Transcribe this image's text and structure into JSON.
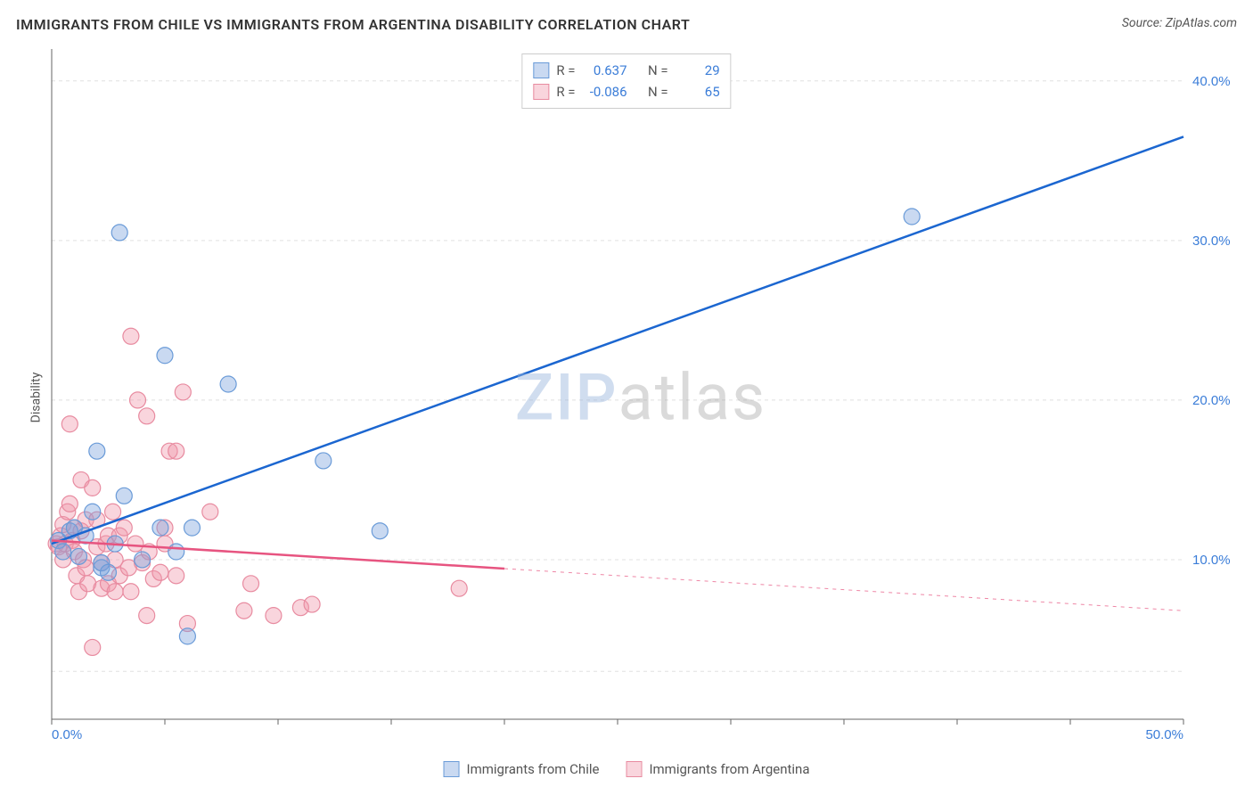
{
  "title": "IMMIGRANTS FROM CHILE VS IMMIGRANTS FROM ARGENTINA DISABILITY CORRELATION CHART",
  "source_prefix": "Source: ",
  "source_name": "ZipAtlas.com",
  "y_axis_label": "Disability",
  "watermark_a": "ZIP",
  "watermark_b": "atlas",
  "chart": {
    "type": "scatter",
    "xlim": [
      0,
      50
    ],
    "ylim": [
      0,
      42
    ],
    "x_ticks": [
      0,
      5,
      10,
      15,
      20,
      25,
      30,
      35,
      40,
      45,
      50
    ],
    "x_tick_labels": {
      "0": "0.0%",
      "50": "50.0%"
    },
    "y_ticks": [
      10,
      20,
      30,
      40
    ],
    "y_tick_labels": {
      "10": "10.0%",
      "20": "20.0%",
      "30": "30.0%",
      "40": "40.0%"
    },
    "y_grid": [
      3,
      10,
      20,
      30,
      40
    ],
    "background_color": "#ffffff",
    "grid_color": "#e0e0e0",
    "grid_dash": "4 4",
    "axis_color": "#666666",
    "tick_label_color": "#3b7dd8",
    "marker_radius": 9,
    "marker_opacity": 0.55,
    "line_width": 2.5
  },
  "series": [
    {
      "name": "Immigrants from Chile",
      "color_fill": "rgba(120,160,220,0.4)",
      "color_stroke": "#6a9bd8",
      "line_color": "#1b66d0",
      "r_label": "R =",
      "r_value": "0.637",
      "n_label": "N =",
      "n_value": "29",
      "points": [
        [
          0.3,
          11.2
        ],
        [
          0.5,
          10.5
        ],
        [
          0.8,
          11.8
        ],
        [
          1.0,
          12.0
        ],
        [
          1.2,
          10.2
        ],
        [
          1.5,
          11.5
        ],
        [
          1.8,
          13.0
        ],
        [
          2.0,
          16.8
        ],
        [
          2.2,
          9.5
        ],
        [
          2.2,
          9.8
        ],
        [
          2.5,
          9.2
        ],
        [
          2.8,
          11.0
        ],
        [
          3.0,
          30.5
        ],
        [
          3.2,
          14.0
        ],
        [
          4.0,
          10.0
        ],
        [
          4.8,
          12.0
        ],
        [
          5.0,
          22.8
        ],
        [
          5.5,
          10.5
        ],
        [
          6.0,
          5.2
        ],
        [
          6.2,
          12.0
        ],
        [
          7.8,
          21.0
        ],
        [
          12.0,
          16.2
        ],
        [
          14.5,
          11.8
        ],
        [
          38.0,
          31.5
        ]
      ],
      "trend": {
        "x1": 0,
        "y1": 11.0,
        "x2": 50,
        "y2": 36.5,
        "solid_until_x": 50
      }
    },
    {
      "name": "Immigrants from Argentina",
      "color_fill": "rgba(240,150,170,0.4)",
      "color_stroke": "#e88ba0",
      "line_color": "#e75480",
      "r_label": "R =",
      "r_value": "-0.086",
      "n_label": "N =",
      "n_value": "65",
      "points": [
        [
          0.2,
          11.0
        ],
        [
          0.3,
          10.8
        ],
        [
          0.4,
          11.5
        ],
        [
          0.5,
          12.2
        ],
        [
          0.5,
          10.0
        ],
        [
          0.6,
          11.0
        ],
        [
          0.7,
          13.0
        ],
        [
          0.8,
          13.5
        ],
        [
          0.8,
          18.5
        ],
        [
          0.9,
          11.2
        ],
        [
          1.0,
          10.5
        ],
        [
          1.0,
          12.0
        ],
        [
          1.1,
          9.0
        ],
        [
          1.2,
          8.0
        ],
        [
          1.3,
          11.8
        ],
        [
          1.3,
          15.0
        ],
        [
          1.4,
          10.0
        ],
        [
          1.5,
          9.5
        ],
        [
          1.5,
          12.5
        ],
        [
          1.6,
          8.5
        ],
        [
          1.8,
          14.5
        ],
        [
          1.8,
          4.5
        ],
        [
          2.0,
          12.5
        ],
        [
          2.0,
          10.8
        ],
        [
          2.2,
          9.8
        ],
        [
          2.2,
          8.2
        ],
        [
          2.4,
          11.0
        ],
        [
          2.5,
          8.5
        ],
        [
          2.5,
          11.5
        ],
        [
          2.7,
          13.0
        ],
        [
          2.8,
          10.0
        ],
        [
          2.8,
          8.0
        ],
        [
          3.0,
          11.5
        ],
        [
          3.0,
          9.0
        ],
        [
          3.2,
          12.0
        ],
        [
          3.4,
          9.5
        ],
        [
          3.5,
          8.0
        ],
        [
          3.5,
          24.0
        ],
        [
          3.7,
          11.0
        ],
        [
          3.8,
          20.0
        ],
        [
          4.0,
          9.8
        ],
        [
          4.2,
          6.5
        ],
        [
          4.2,
          19.0
        ],
        [
          4.3,
          10.5
        ],
        [
          4.5,
          8.8
        ],
        [
          4.8,
          9.2
        ],
        [
          5.0,
          12.0
        ],
        [
          5.0,
          11.0
        ],
        [
          5.2,
          16.8
        ],
        [
          5.5,
          9.0
        ],
        [
          5.5,
          16.8
        ],
        [
          5.8,
          20.5
        ],
        [
          6.0,
          6.0
        ],
        [
          7.0,
          13.0
        ],
        [
          8.5,
          6.8
        ],
        [
          8.8,
          8.5
        ],
        [
          9.8,
          6.5
        ],
        [
          11.0,
          7.0
        ],
        [
          11.5,
          7.2
        ],
        [
          18.0,
          8.2
        ]
      ],
      "trend": {
        "x1": 0,
        "y1": 11.2,
        "x2": 50,
        "y2": 6.8,
        "solid_until_x": 20
      }
    }
  ]
}
